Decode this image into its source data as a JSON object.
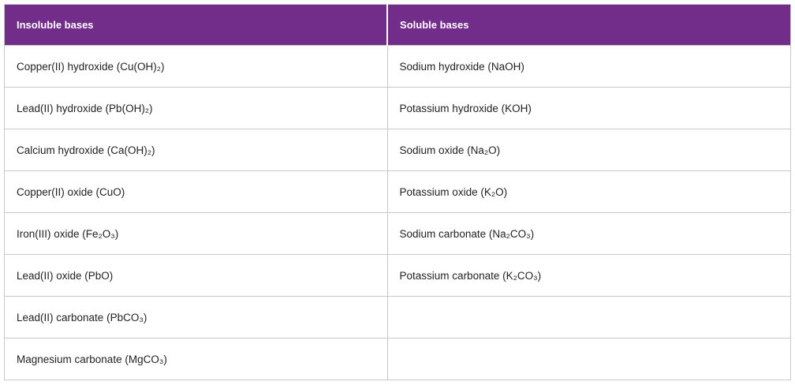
{
  "table": {
    "headers": [
      {
        "label": "Insoluble bases"
      },
      {
        "label": "Soluble bases"
      }
    ],
    "rows": [
      {
        "insoluble": "Copper(II) hydroxide (Cu(OH)₂)",
        "soluble": "Sodium hydroxide (NaOH)"
      },
      {
        "insoluble": "Lead(II) hydroxide (Pb(OH)₂)",
        "soluble": "Potassium hydroxide (KOH)"
      },
      {
        "insoluble": "Calcium hydroxide (Ca(OH)₂)",
        "soluble": "Sodium oxide (Na₂O)"
      },
      {
        "insoluble": "Copper(II) oxide (CuO)",
        "soluble": "Potassium oxide (K₂O)"
      },
      {
        "insoluble": "Iron(III) oxide (Fe₂O₃)",
        "soluble": "Sodium carbonate (Na₂CO₃)"
      },
      {
        "insoluble": "Lead(II) oxide (PbO)",
        "soluble": "Potassium carbonate (K₂CO₃)"
      },
      {
        "insoluble": "Lead(II) carbonate (PbCO₃)",
        "soluble": ""
      },
      {
        "insoluble": "Magnesium carbonate (MgCO₃)",
        "soluble": ""
      }
    ],
    "colors": {
      "header_bg": "#722d8b",
      "header_text": "#ffffff",
      "body_text": "#222222",
      "border": "#c9c9c9"
    }
  }
}
